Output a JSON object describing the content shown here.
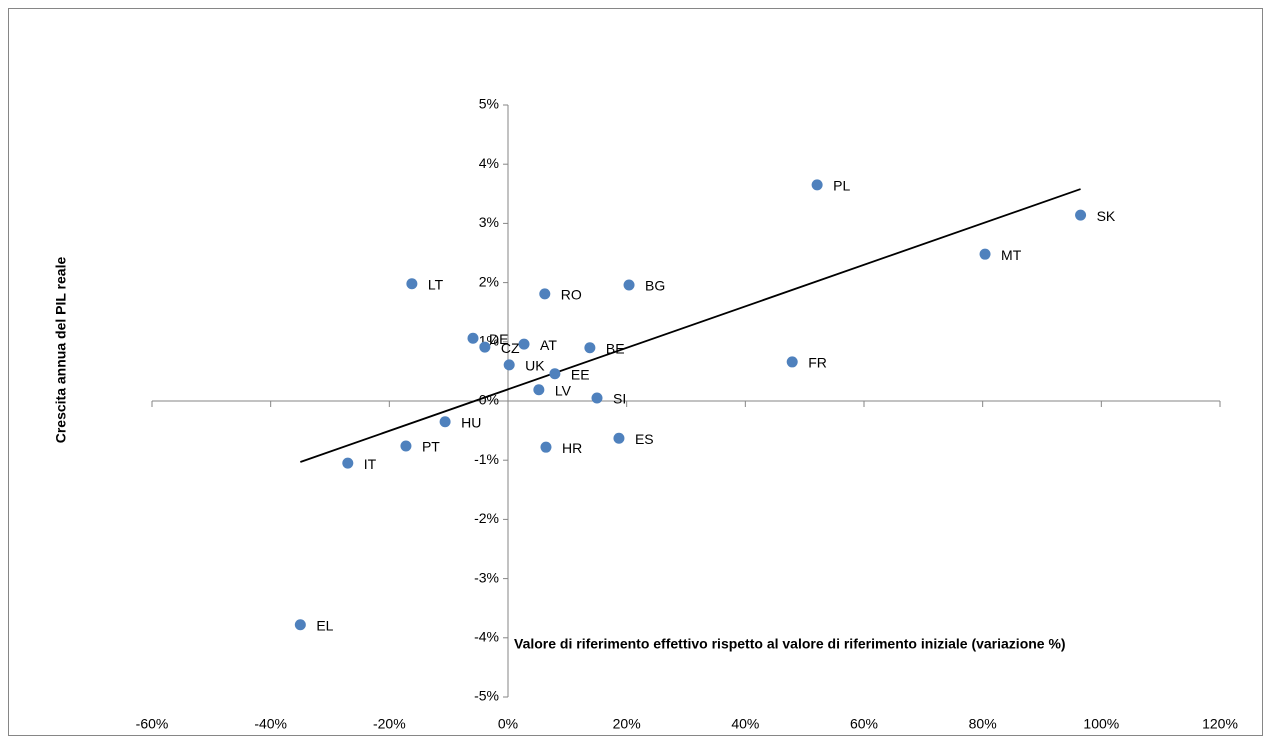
{
  "chart_data": {
    "type": "scatter",
    "x_label": "Valore di riferimento effettivo rispetto al valore di riferimento iniziale (variazione %)",
    "y_label": "Crescita annua del PIL reale",
    "labels": [
      "PL",
      "SK",
      "MT",
      "LT",
      "RO",
      "BG",
      "DE",
      "CZ",
      "AT",
      "BE",
      "FR",
      "UK",
      "EE",
      "LV",
      "SI",
      "HU",
      "ES",
      "PT",
      "HR",
      "IT",
      "EL"
    ],
    "x": [
      52.1,
      96.5,
      80.4,
      -16.2,
      6.2,
      20.4,
      -5.9,
      -3.9,
      2.7,
      13.8,
      47.9,
      0.2,
      7.9,
      5.2,
      15.0,
      -10.6,
      18.7,
      -17.2,
      6.4,
      -27.0,
      -35.0
    ],
    "values": [
      3.65,
      3.14,
      2.48,
      1.98,
      1.81,
      1.96,
      1.06,
      0.91,
      0.96,
      0.9,
      0.66,
      0.61,
      0.46,
      0.19,
      0.05,
      -0.35,
      -0.63,
      -0.76,
      -0.78,
      -1.05,
      -3.78
    ],
    "color": "#4f81bd",
    "trendline": {
      "x": [
        -35.0,
        96.5
      ],
      "y": [
        -1.03,
        3.58
      ],
      "color": "#000000"
    },
    "xlim": [
      -60,
      120
    ],
    "xticks": [
      {
        "value": -60,
        "label": "-60%"
      },
      {
        "value": -40,
        "label": "-40%"
      },
      {
        "value": -20,
        "label": "-20%"
      },
      {
        "value": 0,
        "label": "0%"
      },
      {
        "value": 20,
        "label": "20%"
      },
      {
        "value": 40,
        "label": "40%"
      },
      {
        "value": 60,
        "label": "60%"
      },
      {
        "value": 80,
        "label": "80%"
      },
      {
        "value": 100,
        "label": "100%"
      },
      {
        "value": 120,
        "label": "120%"
      }
    ],
    "ylim": [
      -5,
      5
    ],
    "yticks": [
      {
        "value": -5,
        "label": "-5%"
      },
      {
        "value": -4,
        "label": "-4%"
      },
      {
        "value": -3,
        "label": "-3%"
      },
      {
        "value": -2,
        "label": "-2%"
      },
      {
        "value": -1,
        "label": "-1%"
      },
      {
        "value": 0,
        "label": "0%"
      },
      {
        "value": 1,
        "label": "1%"
      },
      {
        "value": 2,
        "label": "2%"
      },
      {
        "value": 3,
        "label": "3%"
      },
      {
        "value": 4,
        "label": "4%"
      },
      {
        "value": 5,
        "label": "5%"
      }
    ],
    "grid": false
  }
}
